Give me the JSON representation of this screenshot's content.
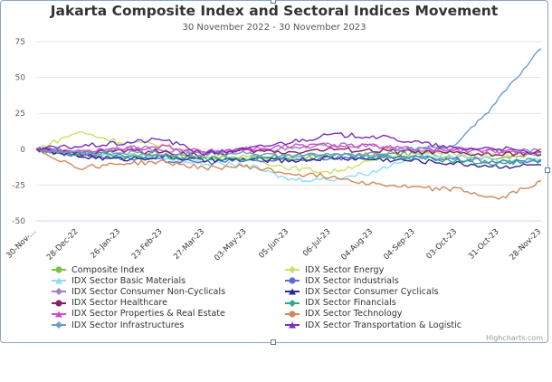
{
  "chart_data": {
    "type": "line",
    "title": "Jakarta Composite Index and Sectoral Indices Movement",
    "subtitle": "30 November 2022 - 30 November 2023",
    "credit": "Highcharts.com",
    "xlabel": "",
    "ylabel": "",
    "ylim": [
      -50,
      75
    ],
    "yticks": [
      75,
      50,
      25,
      0,
      -25,
      -50
    ],
    "grid": true,
    "legend_position": "bottom",
    "categories": [
      "30-Nov-...",
      "28-Dec-22",
      "26-Jan-23",
      "23-Feb-23",
      "27-Mar-23",
      "03-May-23",
      "05-Jun-23",
      "06-Jul-23",
      "04-Aug-23",
      "04-Sep-23",
      "03-Oct-23",
      "31-Oct-23",
      "28-Nov-23"
    ],
    "series": [
      {
        "name": "Composite Index",
        "color": "#7cc242",
        "values": [
          0,
          -4,
          -5,
          -4,
          -6,
          -5,
          -7,
          -5,
          -3,
          -3,
          -5,
          -6,
          -3
        ]
      },
      {
        "name": "IDX Sector Energy",
        "color": "#c9e265",
        "values": [
          0,
          12,
          5,
          3,
          -4,
          -6,
          -13,
          -16,
          -8,
          -3,
          -3,
          -5,
          -2
        ]
      },
      {
        "name": "IDX Sector Basic Materials",
        "color": "#8fdcf2",
        "values": [
          0,
          -3,
          -4,
          -6,
          -10,
          -11,
          -21,
          -21,
          -16,
          -4,
          -4,
          -8,
          -8
        ]
      },
      {
        "name": "IDX Sector Industrials",
        "color": "#5a6fd6",
        "values": [
          0,
          -4,
          -6,
          -8,
          -9,
          -8,
          -8,
          -6,
          -6,
          -6,
          -7,
          -9,
          -8
        ]
      },
      {
        "name": "IDX Sector Consumer Non-Cyclicals",
        "color": "#a37fbd",
        "values": [
          0,
          -2,
          1,
          0,
          -3,
          0,
          0,
          3,
          2,
          -1,
          0,
          -1,
          0
        ]
      },
      {
        "name": "IDX Sector Consumer Cyclicals",
        "color": "#2e2a8c",
        "values": [
          0,
          -5,
          -7,
          -5,
          -8,
          -7,
          -8,
          -6,
          -7,
          -8,
          -10,
          -12,
          -11
        ]
      },
      {
        "name": "IDX Sector Healthcare",
        "color": "#8b1f63",
        "values": [
          0,
          -3,
          -1,
          -2,
          -4,
          -1,
          -2,
          0,
          -1,
          -2,
          -3,
          -4,
          -2
        ]
      },
      {
        "name": "IDX Sector Financials",
        "color": "#2eaa8a",
        "values": [
          0,
          -3,
          -4,
          -5,
          -7,
          -6,
          -5,
          -4,
          -5,
          -6,
          -8,
          -10,
          -7
        ]
      },
      {
        "name": "IDX Sector Properties & Real Estate",
        "color": "#d14bd0",
        "values": [
          0,
          -2,
          0,
          2,
          -2,
          0,
          2,
          3,
          2,
          0,
          -1,
          -2,
          -2
        ]
      },
      {
        "name": "IDX Sector Technology",
        "color": "#d08a5a",
        "values": [
          0,
          -13,
          -10,
          -9,
          -13,
          -12,
          -17,
          -19,
          -24,
          -27,
          -28,
          -35,
          -22
        ]
      },
      {
        "name": "IDX Sector Infrastructures",
        "color": "#6e9bd2",
        "values": [
          0,
          -3,
          -2,
          -3,
          -4,
          -2,
          -5,
          -4,
          -3,
          0,
          3,
          35,
          70
        ]
      },
      {
        "name": "IDX Sector Transportation & Logistic",
        "color": "#7a2ec2",
        "values": [
          0,
          2,
          4,
          7,
          -3,
          0,
          5,
          10,
          9,
          5,
          0,
          1,
          -4
        ]
      }
    ]
  }
}
